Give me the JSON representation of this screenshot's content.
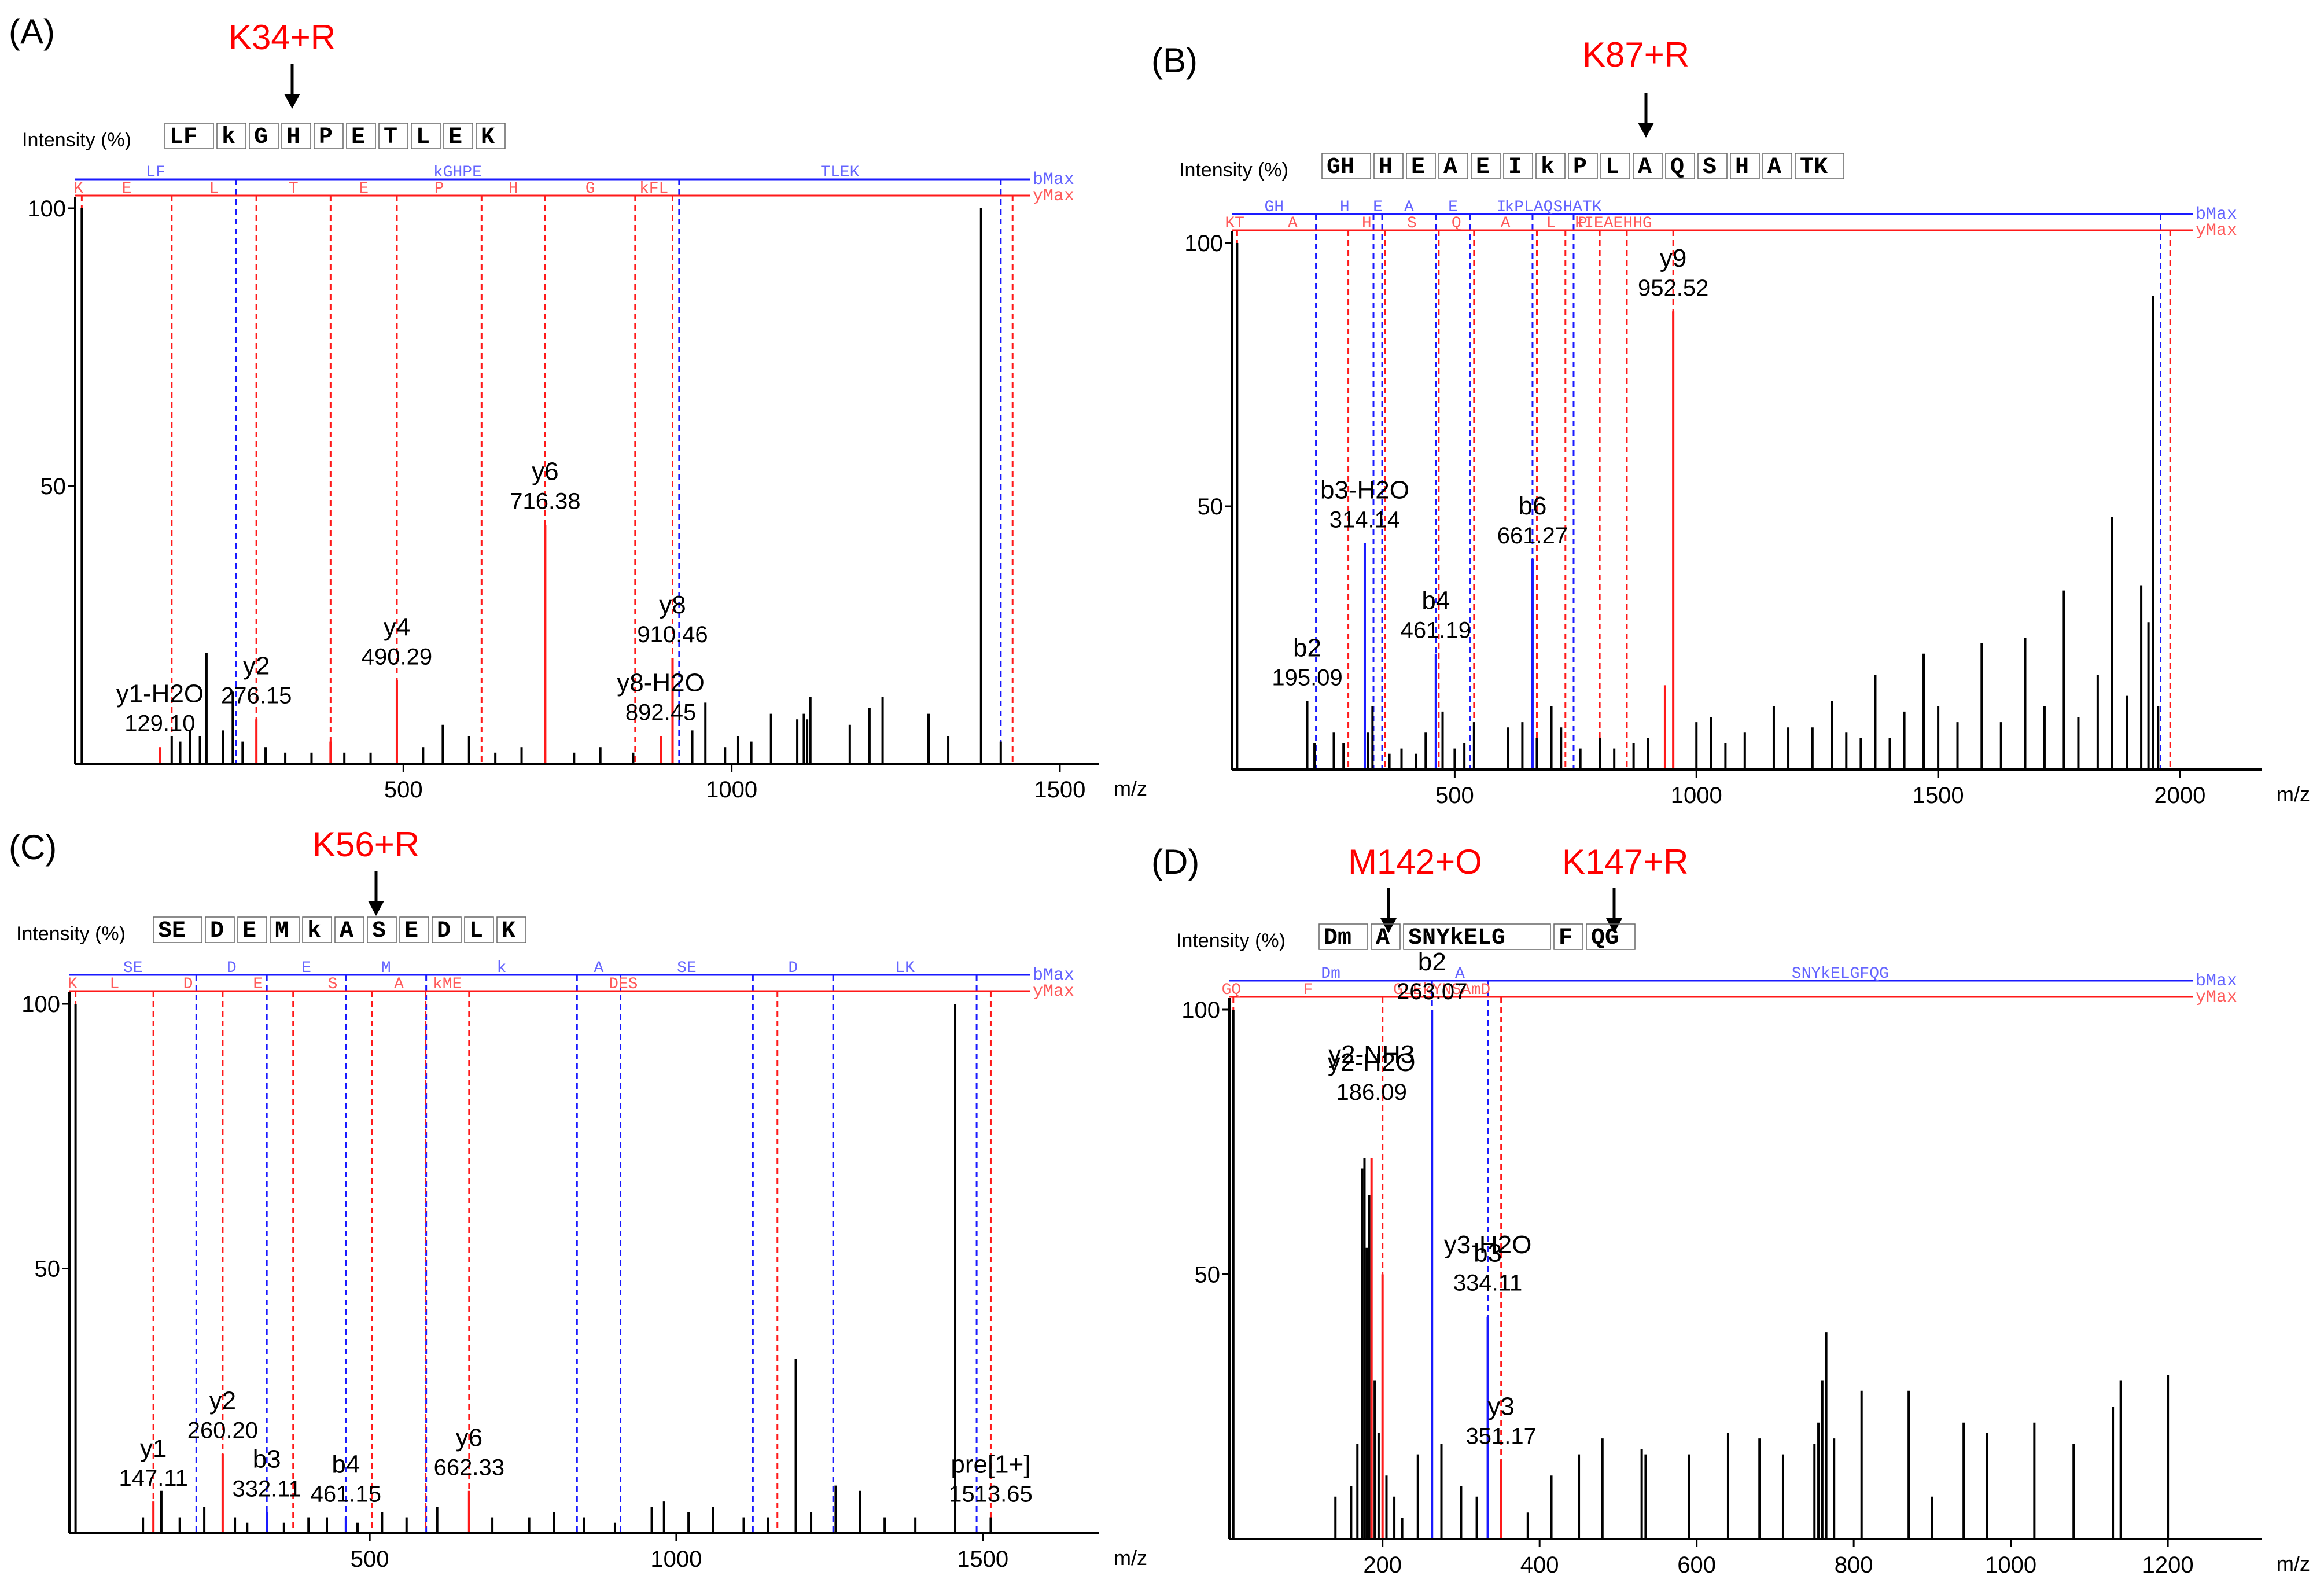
{
  "colors": {
    "b": "#1a1aff",
    "y": "#ff1a1a",
    "peak": "#000000",
    "mod": "#ff0000",
    "axis": "#000000",
    "b_label": "#6464ff",
    "y_label": "#ff5a5a"
  },
  "chart_data": [
    {
      "panel": "(A)",
      "type": "bar",
      "title": "K34+R",
      "ylabel": "Intensity (%)",
      "xlabel": "m/z",
      "xlim": [
        0,
        1560
      ],
      "xticks": [
        500,
        1000,
        1500
      ],
      "ylim": [
        0,
        100
      ],
      "yticks": [
        50,
        100
      ],
      "sequence": [
        "LF",
        "k",
        "G",
        "H",
        "P",
        "E",
        "T",
        "L",
        "E",
        "K"
      ],
      "b_ladder": {
        "labels": [
          "LF",
          "kGHPE",
          "TLEK"
        ],
        "max_label": "bMax"
      },
      "y_ladder": {
        "labels": [
          "K",
          "E",
          "L",
          "T",
          "E",
          "P",
          "H",
          "G",
          "kFL"
        ],
        "max_label": "yMax"
      },
      "b_lines": [
        245,
        920,
        1410
      ],
      "y_lines": [
        10,
        147,
        276,
        389,
        490,
        619,
        716,
        853,
        910,
        1428
      ],
      "peaks": [
        [
          10,
          100,
          "k"
        ],
        [
          129,
          3,
          "y"
        ],
        [
          147,
          5,
          "k"
        ],
        [
          160,
          4,
          "k"
        ],
        [
          175,
          6,
          "k"
        ],
        [
          190,
          5,
          "k"
        ],
        [
          200,
          20,
          "k"
        ],
        [
          225,
          6,
          "k"
        ],
        [
          240,
          13,
          "k"
        ],
        [
          255,
          4,
          "k"
        ],
        [
          276,
          8,
          "y"
        ],
        [
          290,
          3,
          "k"
        ],
        [
          320,
          2,
          "k"
        ],
        [
          360,
          2,
          "k"
        ],
        [
          389,
          4,
          "y"
        ],
        [
          410,
          2,
          "k"
        ],
        [
          450,
          2,
          "k"
        ],
        [
          490,
          15,
          "y"
        ],
        [
          530,
          3,
          "k"
        ],
        [
          560,
          7,
          "k"
        ],
        [
          600,
          5,
          "k"
        ],
        [
          640,
          2,
          "k"
        ],
        [
          680,
          3,
          "k"
        ],
        [
          716,
          43,
          "y"
        ],
        [
          760,
          2,
          "k"
        ],
        [
          800,
          3,
          "k"
        ],
        [
          850,
          2,
          "k"
        ],
        [
          892,
          5,
          "y"
        ],
        [
          910,
          19,
          "y"
        ],
        [
          940,
          6,
          "k"
        ],
        [
          960,
          11,
          "k"
        ],
        [
          990,
          3,
          "k"
        ],
        [
          1010,
          5,
          "k"
        ],
        [
          1030,
          4,
          "k"
        ],
        [
          1060,
          9,
          "k"
        ],
        [
          1100,
          8,
          "k"
        ],
        [
          1110,
          9,
          "k"
        ],
        [
          1115,
          8,
          "k"
        ],
        [
          1120,
          12,
          "k"
        ],
        [
          1180,
          7,
          "k"
        ],
        [
          1210,
          10,
          "k"
        ],
        [
          1230,
          12,
          "k"
        ],
        [
          1300,
          9,
          "k"
        ],
        [
          1330,
          5,
          "k"
        ],
        [
          1380,
          100,
          "k"
        ],
        [
          1410,
          4,
          "k"
        ]
      ],
      "annotations": [
        {
          "ion": "y1-H2O",
          "mz": "129.10",
          "x": 129,
          "y": 4
        },
        {
          "ion": "y2",
          "mz": "276.15",
          "x": 276,
          "y": 9
        },
        {
          "ion": "y4",
          "mz": "490.29",
          "x": 490,
          "y": 16
        },
        {
          "ion": "y6",
          "mz": "716.38",
          "x": 716,
          "y": 44
        },
        {
          "ion": "y8-H2O",
          "mz": "892.45",
          "x": 892,
          "y": 6
        },
        {
          "ion": "y8",
          "mz": "910.46",
          "x": 910,
          "y": 20
        }
      ]
    },
    {
      "panel": "(B)",
      "type": "bar",
      "title": "K87+R",
      "ylabel": "Intensity (%)",
      "xlabel": "m/z",
      "xlim": [
        40,
        2170
      ],
      "xticks": [
        500,
        1000,
        1500,
        2000
      ],
      "ylim": [
        0,
        100
      ],
      "yticks": [
        50,
        100
      ],
      "sequence": [
        "GH",
        "H",
        "E",
        "A",
        "E",
        "I",
        "k",
        "P",
        "L",
        "A",
        "Q",
        "S",
        "H",
        "A",
        "TK"
      ],
      "b_ladder": {
        "labels": [
          "GH",
          "H",
          "E",
          "A",
          "E",
          "I",
          "kPLAQSHATK"
        ],
        "max_label": "bMax"
      },
      "y_ladder": {
        "labels": [
          "KT",
          "A",
          "H",
          "S",
          "Q",
          "A",
          "L",
          "P",
          "kIEAEHHG"
        ],
        "max_label": "yMax"
      },
      "b_lines": [
        213,
        332,
        350,
        461,
        532,
        661,
        746,
        1960
      ],
      "y_lines": [
        50,
        280,
        356,
        467,
        540,
        670,
        729,
        800,
        856,
        952,
        1980
      ],
      "peaks": [
        [
          50,
          100,
          "k"
        ],
        [
          195,
          13,
          "k"
        ],
        [
          210,
          5,
          "k"
        ],
        [
          250,
          7,
          "k"
        ],
        [
          270,
          5,
          "k"
        ],
        [
          314,
          43,
          "b"
        ],
        [
          320,
          7,
          "k"
        ],
        [
          330,
          12,
          "k"
        ],
        [
          365,
          3,
          "k"
        ],
        [
          390,
          4,
          "k"
        ],
        [
          420,
          3,
          "k"
        ],
        [
          440,
          7,
          "k"
        ],
        [
          461,
          22,
          "b"
        ],
        [
          475,
          11,
          "k"
        ],
        [
          500,
          4,
          "k"
        ],
        [
          520,
          5,
          "k"
        ],
        [
          540,
          9,
          "k"
        ],
        [
          610,
          8,
          "k"
        ],
        [
          640,
          9,
          "k"
        ],
        [
          661,
          40,
          "b"
        ],
        [
          670,
          6,
          "k"
        ],
        [
          700,
          12,
          "k"
        ],
        [
          720,
          8,
          "k"
        ],
        [
          760,
          4,
          "k"
        ],
        [
          800,
          6,
          "k"
        ],
        [
          830,
          4,
          "k"
        ],
        [
          870,
          5,
          "k"
        ],
        [
          900,
          6,
          "k"
        ],
        [
          935,
          16,
          "y"
        ],
        [
          952,
          87,
          "y"
        ],
        [
          1000,
          9,
          "k"
        ],
        [
          1030,
          10,
          "k"
        ],
        [
          1060,
          5,
          "k"
        ],
        [
          1100,
          7,
          "k"
        ],
        [
          1160,
          12,
          "k"
        ],
        [
          1190,
          8,
          "k"
        ],
        [
          1240,
          8,
          "k"
        ],
        [
          1280,
          13,
          "k"
        ],
        [
          1310,
          7,
          "k"
        ],
        [
          1340,
          6,
          "k"
        ],
        [
          1370,
          18,
          "k"
        ],
        [
          1400,
          6,
          "k"
        ],
        [
          1430,
          11,
          "k"
        ],
        [
          1470,
          22,
          "k"
        ],
        [
          1500,
          12,
          "k"
        ],
        [
          1540,
          9,
          "k"
        ],
        [
          1590,
          24,
          "k"
        ],
        [
          1630,
          9,
          "k"
        ],
        [
          1680,
          25,
          "k"
        ],
        [
          1720,
          12,
          "k"
        ],
        [
          1760,
          34,
          "k"
        ],
        [
          1790,
          10,
          "k"
        ],
        [
          1830,
          18,
          "k"
        ],
        [
          1860,
          48,
          "k"
        ],
        [
          1890,
          14,
          "k"
        ],
        [
          1920,
          35,
          "k"
        ],
        [
          1935,
          28,
          "k"
        ],
        [
          1945,
          90,
          "k"
        ],
        [
          1955,
          12,
          "k"
        ]
      ],
      "annotations": [
        {
          "ion": "b2",
          "mz": "195.09",
          "x": 195,
          "y": 14
        },
        {
          "ion": "b3-H2O",
          "mz": "314.14",
          "x": 314,
          "y": 44
        },
        {
          "ion": "b4",
          "mz": "461.19",
          "x": 461,
          "y": 23
        },
        {
          "ion": "b6",
          "mz": "661.27",
          "x": 661,
          "y": 41
        },
        {
          "ion": "y9",
          "mz": "952.52",
          "x": 952,
          "y": 88
        }
      ]
    },
    {
      "panel": "(C)",
      "type": "bar",
      "title": "K56+R",
      "ylabel": "Intensity (%)",
      "xlabel": "m/z",
      "xlim": [
        10,
        1690
      ],
      "xticks": [
        500,
        1000,
        1500
      ],
      "ylim": [
        0,
        100
      ],
      "yticks": [
        50,
        100
      ],
      "sequence": [
        "SE",
        "D",
        "E",
        "M",
        "k",
        "A",
        "S",
        "E",
        "D",
        "L",
        "K"
      ],
      "b_ladder": {
        "labels": [
          "SE",
          "D",
          "E",
          "M",
          "k",
          "A",
          "SE",
          "D",
          "LK"
        ],
        "max_label": "bMax"
      },
      "y_ladder": {
        "labels": [
          "K",
          "L",
          "D",
          "E",
          "S",
          "A",
          "kME",
          "DES"
        ],
        "max_label": "yMax"
      },
      "b_lines": [
        217,
        332,
        461,
        592,
        838,
        909,
        1125,
        1256,
        1490
      ],
      "y_lines": [
        20,
        147,
        260,
        375,
        504,
        591,
        662,
        1165,
        1513
      ],
      "peaks": [
        [
          20,
          100,
          "k"
        ],
        [
          130,
          3,
          "k"
        ],
        [
          147,
          6,
          "y"
        ],
        [
          160,
          8,
          "k"
        ],
        [
          190,
          3,
          "k"
        ],
        [
          230,
          5,
          "k"
        ],
        [
          260,
          15,
          "y"
        ],
        [
          280,
          3,
          "k"
        ],
        [
          300,
          2,
          "k"
        ],
        [
          332,
          4,
          "b"
        ],
        [
          360,
          2,
          "k"
        ],
        [
          400,
          3,
          "k"
        ],
        [
          430,
          3,
          "k"
        ],
        [
          461,
          3,
          "b"
        ],
        [
          480,
          2,
          "k"
        ],
        [
          520,
          4,
          "k"
        ],
        [
          560,
          3,
          "k"
        ],
        [
          610,
          5,
          "k"
        ],
        [
          662,
          8,
          "y"
        ],
        [
          700,
          3,
          "k"
        ],
        [
          760,
          3,
          "k"
        ],
        [
          800,
          4,
          "k"
        ],
        [
          850,
          3,
          "k"
        ],
        [
          900,
          2,
          "k"
        ],
        [
          960,
          5,
          "k"
        ],
        [
          980,
          6,
          "k"
        ],
        [
          1020,
          4,
          "k"
        ],
        [
          1060,
          5,
          "k"
        ],
        [
          1110,
          3,
          "k"
        ],
        [
          1150,
          3,
          "k"
        ],
        [
          1195,
          33,
          "k"
        ],
        [
          1220,
          4,
          "k"
        ],
        [
          1260,
          9,
          "k"
        ],
        [
          1300,
          8,
          "k"
        ],
        [
          1340,
          3,
          "k"
        ],
        [
          1390,
          3,
          "k"
        ],
        [
          1455,
          100,
          "k"
        ],
        [
          1513,
          3,
          "k"
        ]
      ],
      "annotations": [
        {
          "ion": "y1",
          "mz": "147.11",
          "x": 147,
          "y": 7
        },
        {
          "ion": "y2",
          "mz": "260.20",
          "x": 260,
          "y": 16
        },
        {
          "ion": "b3",
          "mz": "332.11",
          "x": 332,
          "y": 5
        },
        {
          "ion": "b4",
          "mz": "461.15",
          "x": 461,
          "y": 4
        },
        {
          "ion": "y6",
          "mz": "662.33",
          "x": 662,
          "y": 9
        },
        {
          "ion": "pre[1+]",
          "mz": "1513.65",
          "x": 1513,
          "y": 4
        }
      ]
    },
    {
      "panel": "(D)",
      "type": "bar",
      "title": "M142+O   K147+R",
      "mod_labels": [
        "M142+O",
        "K147+R"
      ],
      "ylabel": "Intensity (%)",
      "xlabel": "m/z",
      "xlim": [
        5,
        1320
      ],
      "xticks": [
        200,
        400,
        600,
        800,
        1000,
        1200
      ],
      "ylim": [
        0,
        100
      ],
      "yticks": [
        50,
        100
      ],
      "sequence": [
        "Dm",
        "A",
        "SNYkELG",
        "F",
        "QG"
      ],
      "b_ladder": {
        "labels": [
          "Dm",
          "A",
          "SNYkELGFQG"
        ],
        "max_label": "bMax"
      },
      "y_ladder": {
        "labels": [
          "GQ",
          "F",
          "GLEkYNSAmD"
        ],
        "max_label": "yMax"
      },
      "b_lines": [
        263,
        334
      ],
      "y_lines": [
        10,
        200,
        351
      ],
      "peaks": [
        [
          10,
          100,
          "k"
        ],
        [
          140,
          8,
          "k"
        ],
        [
          160,
          10,
          "k"
        ],
        [
          168,
          18,
          "k"
        ],
        [
          174,
          70,
          "k"
        ],
        [
          177,
          72,
          "k"
        ],
        [
          180,
          55,
          "k"
        ],
        [
          183,
          65,
          "k"
        ],
        [
          186,
          72,
          "y"
        ],
        [
          190,
          30,
          "k"
        ],
        [
          195,
          20,
          "k"
        ],
        [
          200,
          50,
          "y"
        ],
        [
          205,
          12,
          "k"
        ],
        [
          215,
          8,
          "k"
        ],
        [
          225,
          4,
          "k"
        ],
        [
          245,
          16,
          "k"
        ],
        [
          263,
          100,
          "b"
        ],
        [
          275,
          18,
          "k"
        ],
        [
          300,
          10,
          "k"
        ],
        [
          320,
          8,
          "k"
        ],
        [
          334,
          42,
          "b"
        ],
        [
          351,
          15,
          "y"
        ],
        [
          385,
          5,
          "k"
        ],
        [
          415,
          12,
          "k"
        ],
        [
          450,
          16,
          "k"
        ],
        [
          480,
          19,
          "k"
        ],
        [
          530,
          17,
          "k"
        ],
        [
          535,
          16,
          "k"
        ],
        [
          590,
          16,
          "k"
        ],
        [
          640,
          20,
          "k"
        ],
        [
          680,
          19,
          "k"
        ],
        [
          710,
          16,
          "k"
        ],
        [
          750,
          18,
          "k"
        ],
        [
          755,
          22,
          "k"
        ],
        [
          760,
          30,
          "k"
        ],
        [
          765,
          39,
          "k"
        ],
        [
          775,
          19,
          "k"
        ],
        [
          810,
          28,
          "k"
        ],
        [
          870,
          28,
          "k"
        ],
        [
          900,
          8,
          "k"
        ],
        [
          940,
          22,
          "k"
        ],
        [
          970,
          20,
          "k"
        ],
        [
          1030,
          22,
          "k"
        ],
        [
          1080,
          18,
          "k"
        ],
        [
          1130,
          25,
          "k"
        ],
        [
          1140,
          30,
          "k"
        ],
        [
          1200,
          31,
          "k"
        ]
      ],
      "annotations": [
        {
          "ion": "y2-NH3",
          "mz": "",
          "x": 186,
          "y": 88
        },
        {
          "ion": "y2-H2O",
          "mz": "186.09",
          "x": 186,
          "y": 81
        },
        {
          "ion": "b2",
          "mz": "263.07",
          "x": 263,
          "y": 100
        },
        {
          "ion": "y3-H2O",
          "mz": "",
          "x": 334,
          "y": 52
        },
        {
          "ion": "b3",
          "mz": "334.11",
          "x": 334,
          "y": 45
        },
        {
          "ion": "y3",
          "mz": "351.17",
          "x": 351,
          "y": 16
        }
      ]
    }
  ]
}
